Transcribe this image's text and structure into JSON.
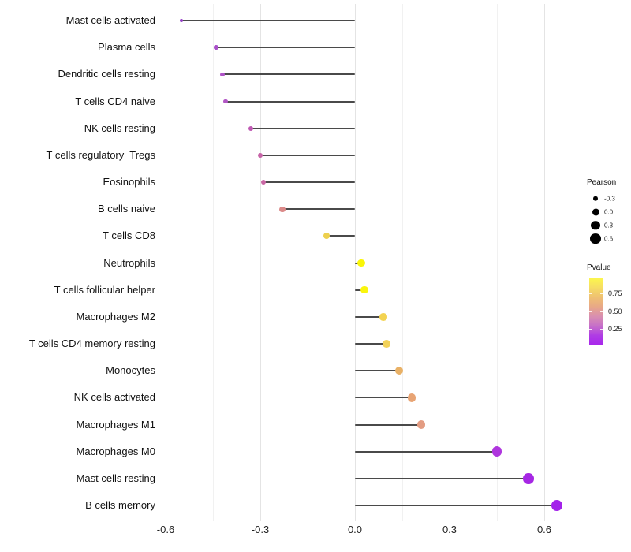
{
  "chart_data": {
    "type": "scatter",
    "variant": "horizontal-lollipop",
    "title": "",
    "xlabel": "",
    "ylabel": "",
    "xlim": [
      -0.625,
      0.685
    ],
    "x_ticks": [
      -0.6,
      -0.3,
      0.0,
      0.3,
      0.6
    ],
    "x_tick_labels": [
      "-0.6",
      "-0.3",
      "0.0",
      "0.3",
      "0.6"
    ],
    "x_minor_gridlines": [
      -0.45,
      -0.15,
      0.15,
      0.45
    ],
    "grid": "vertical-only",
    "stem_color": "#4a4a4a",
    "rows": [
      {
        "label": "Mast cells activated",
        "pearson": -0.55,
        "dot_color": "#9540C6"
      },
      {
        "label": "Plasma cells",
        "pearson": -0.44,
        "dot_color": "#A94FC9"
      },
      {
        "label": "Dendritic cells resting",
        "pearson": -0.42,
        "dot_color": "#AF53C7"
      },
      {
        "label": "T cells CD4 naive",
        "pearson": -0.41,
        "dot_color": "#B256C5"
      },
      {
        "label": "NK cells resting",
        "pearson": -0.33,
        "dot_color": "#BF58B3"
      },
      {
        "label": "T cells regulatory  Tregs",
        "pearson": -0.3,
        "dot_color": "#C765A8"
      },
      {
        "label": "Eosinophils",
        "pearson": -0.29,
        "dot_color": "#C967A4"
      },
      {
        "label": "B cells naive",
        "pearson": -0.23,
        "dot_color": "#DB8A89"
      },
      {
        "label": "T cells CD8",
        "pearson": -0.09,
        "dot_color": "#EDD04E"
      },
      {
        "label": "Neutrophils",
        "pearson": 0.02,
        "dot_color": "#FAF607"
      },
      {
        "label": "T cells follicular helper",
        "pearson": 0.03,
        "dot_color": "#FAF50D"
      },
      {
        "label": "Macrophages M2",
        "pearson": 0.09,
        "dot_color": "#F3D352"
      },
      {
        "label": "T cells CD4 memory resting",
        "pearson": 0.1,
        "dot_color": "#F2D25A"
      },
      {
        "label": "Monocytes",
        "pearson": 0.14,
        "dot_color": "#E9B166"
      },
      {
        "label": "NK cells activated",
        "pearson": 0.18,
        "dot_color": "#E8A474"
      },
      {
        "label": "Macrophages M1",
        "pearson": 0.21,
        "dot_color": "#E39C82"
      },
      {
        "label": "Macrophages M0",
        "pearson": 0.45,
        "dot_color": "#AF36DE"
      },
      {
        "label": "Mast cells resting",
        "pearson": 0.55,
        "dot_color": "#A627E4"
      },
      {
        "label": "B cells memory",
        "pearson": 0.64,
        "dot_color": "#A322EA"
      }
    ],
    "legend_pearson": {
      "title": "Pearson",
      "entries": [
        {
          "label": "-0.3",
          "value": -0.3
        },
        {
          "label": "0.0",
          "value": 0.0
        },
        {
          "label": "0.3",
          "value": 0.3
        },
        {
          "label": "0.6",
          "value": 0.6
        }
      ],
      "dot_color": "#000000"
    },
    "legend_pvalue": {
      "title": "Pvalue",
      "tick_labels": [
        "0.75",
        "0.50",
        "0.25"
      ],
      "gradient_top_to_bottom": [
        "#FCF84C",
        "#F6DE63",
        "#EFC171",
        "#E8A887",
        "#D98FB0",
        "#C66FC9",
        "#AF3BE5",
        "#A826EC"
      ]
    }
  }
}
